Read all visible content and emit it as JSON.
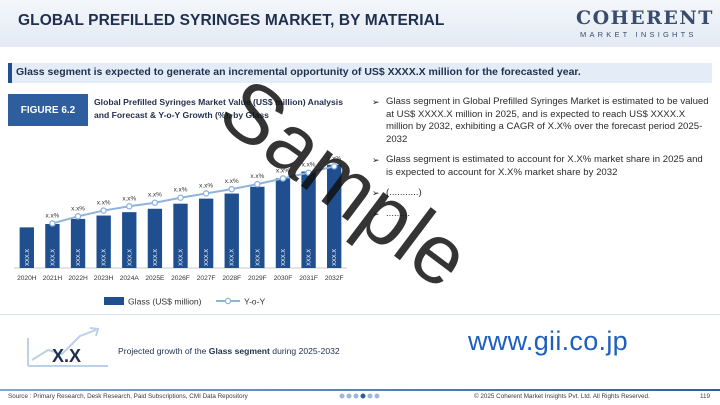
{
  "header": {
    "title": "GLOBAL PREFILLED SYRINGES MARKET, BY MATERIAL",
    "logo_main": "COHERENT",
    "logo_sub": "MARKET INSIGHTS"
  },
  "callout": "Glass segment is expected to generate an incremental opportunity of US$ XXXX.X million for the forecasted year.",
  "figure": {
    "tag": "FIGURE 6.2",
    "title": "Global Prefilled Syringes Market Value (US$ million) Analysis and Forecast & Y-o-Y Growth (%), by Glass"
  },
  "chart_data": {
    "type": "bar",
    "categories": [
      "2020H",
      "2021H",
      "2022H",
      "2023H",
      "2024A",
      "2025E",
      "2026F",
      "2027F",
      "2028F",
      "2029F",
      "2030F",
      "2031F",
      "2032F"
    ],
    "series": [
      {
        "name": "Glass (US$ million)",
        "type": "bar",
        "values": [
          24,
          26,
          29,
          31,
          33,
          35,
          38,
          41,
          44,
          48,
          53,
          57,
          61
        ],
        "labels": [
          "XXX.X",
          "XXX.X",
          "XXX.X",
          "XXX.X",
          "XXX.X",
          "XXX.X",
          "XXX.X",
          "XXX.X",
          "XXX.X",
          "XXX.X",
          "XXX.X",
          "XXX.X",
          "XXX.X"
        ],
        "color": "#1f4f8f"
      },
      {
        "name": "Y-o-Y",
        "type": "line",
        "values": [
          null,
          4.0,
          5.0,
          5.8,
          6.4,
          6.9,
          7.6,
          8.2,
          8.8,
          9.5,
          10.3,
          11.1,
          12.0
        ],
        "labels": [
          "",
          "x.x%",
          "x.x%",
          "x.x%",
          "x.x%",
          "x.x%",
          "x.x%",
          "x.x%",
          "x.x%",
          "x.x%",
          "x.x%",
          "x.x%",
          "x.x%"
        ],
        "color": "#8fb4dc"
      }
    ],
    "legend": "bottom",
    "grid": false
  },
  "bullets": [
    "Glass segment in Global Prefilled Syringes Market is estimated to be valued at US$ XXXX.X million in 2025, and is expected to reach US$ XXXX.X million by 2032, exhibiting a CAGR of X.X% over the forecast period 2025-2032",
    "Glass segment is estimated to account for X.X% market share in 2025 and is expected to account for X.X% market share by 2032",
    "(...........)",
    "........."
  ],
  "projection": {
    "value": "X.X",
    "text": "Projected growth of the Glass segment during 2025-2032"
  },
  "watermark": "Sample",
  "site": "www.gii.co.jp",
  "footer": {
    "source": "Source : Primary Research, Desk Research, Paid Subscriptions, CMI Data Repository",
    "copyright": "© 2025 Coherent Market Insights Pvt. Ltd. All Rights Reserved.",
    "page": "119"
  },
  "colors": {
    "primary": "#1f4f8f",
    "accent": "#8fb4dc",
    "title": "#1f2f4d",
    "gii": "#1f5fbf"
  }
}
